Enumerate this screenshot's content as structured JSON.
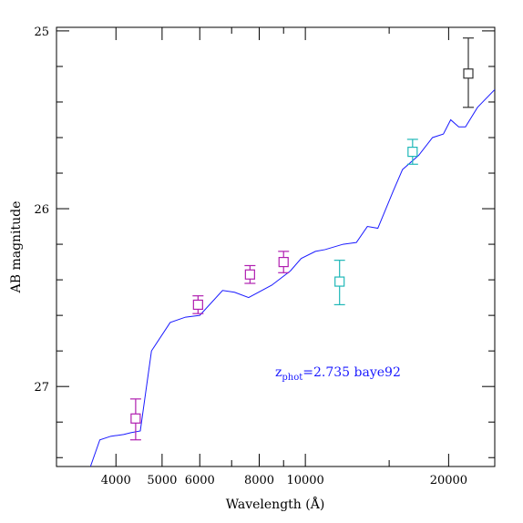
{
  "chart_data": {
    "type": "line",
    "xlabel": "Wavelength (Å)",
    "ylabel": "AB magnitude",
    "x_scale": "log",
    "xlim": [
      3000,
      25000
    ],
    "ylim": [
      27.45,
      24.98
    ],
    "x_tick_labels": [
      "4000",
      "5000",
      "6000",
      "8000",
      "10000",
      "20000"
    ],
    "x_tick_values": [
      4000,
      5000,
      6000,
      8000,
      10000,
      20000
    ],
    "y_tick_labels": [
      "25",
      "26",
      "27"
    ],
    "y_tick_values": [
      25,
      26,
      27
    ],
    "annotation": {
      "prefix": "z",
      "sub": "phot",
      "value": "=2.735 baye92",
      "color": "#1a1aff"
    },
    "colors": {
      "template": "#1a1aff",
      "magenta": "#b01fb0",
      "cyan": "#20b8b8",
      "black": "#333333"
    },
    "series": [
      {
        "type": "line",
        "color": "template",
        "points": [
          [
            3400,
            27.58
          ],
          [
            3700,
            27.3
          ],
          [
            3900,
            27.28
          ],
          [
            4150,
            27.27
          ],
          [
            4300,
            27.26
          ],
          [
            4500,
            27.25
          ],
          [
            4750,
            26.8
          ],
          [
            5200,
            26.64
          ],
          [
            5600,
            26.61
          ],
          [
            6000,
            26.6
          ],
          [
            6700,
            26.46
          ],
          [
            7100,
            26.47
          ],
          [
            7600,
            26.5
          ],
          [
            8500,
            26.43
          ],
          [
            9300,
            26.35
          ],
          [
            9800,
            26.28
          ],
          [
            10500,
            26.24
          ],
          [
            11000,
            26.23
          ],
          [
            12000,
            26.2
          ],
          [
            12800,
            26.19
          ],
          [
            13500,
            26.1
          ],
          [
            14200,
            26.11
          ],
          [
            15300,
            25.9
          ],
          [
            16000,
            25.78
          ],
          [
            17300,
            25.7
          ],
          [
            18500,
            25.6
          ],
          [
            19500,
            25.58
          ],
          [
            20200,
            25.5
          ],
          [
            21000,
            25.54
          ],
          [
            21700,
            25.54
          ],
          [
            23000,
            25.43
          ],
          [
            25000,
            25.33
          ]
        ]
      }
    ],
    "points": [
      {
        "x": 4400,
        "y": 27.18,
        "err_low": 27.3,
        "err_high": 27.07,
        "color": "magenta"
      },
      {
        "x": 5950,
        "y": 26.54,
        "err_low": 26.59,
        "err_high": 26.49,
        "color": "magenta"
      },
      {
        "x": 7650,
        "y": 26.37,
        "err_low": 26.42,
        "err_high": 26.32,
        "color": "magenta"
      },
      {
        "x": 9000,
        "y": 26.3,
        "err_low": 26.36,
        "err_high": 26.24,
        "color": "magenta"
      },
      {
        "x": 11800,
        "y": 26.41,
        "err_low": 26.54,
        "err_high": 26.29,
        "color": "cyan"
      },
      {
        "x": 16800,
        "y": 25.68,
        "err_low": 25.75,
        "err_high": 25.61,
        "color": "cyan"
      },
      {
        "x": 22000,
        "y": 25.24,
        "err_low": 25.43,
        "err_high": 25.04,
        "color": "black"
      }
    ]
  }
}
